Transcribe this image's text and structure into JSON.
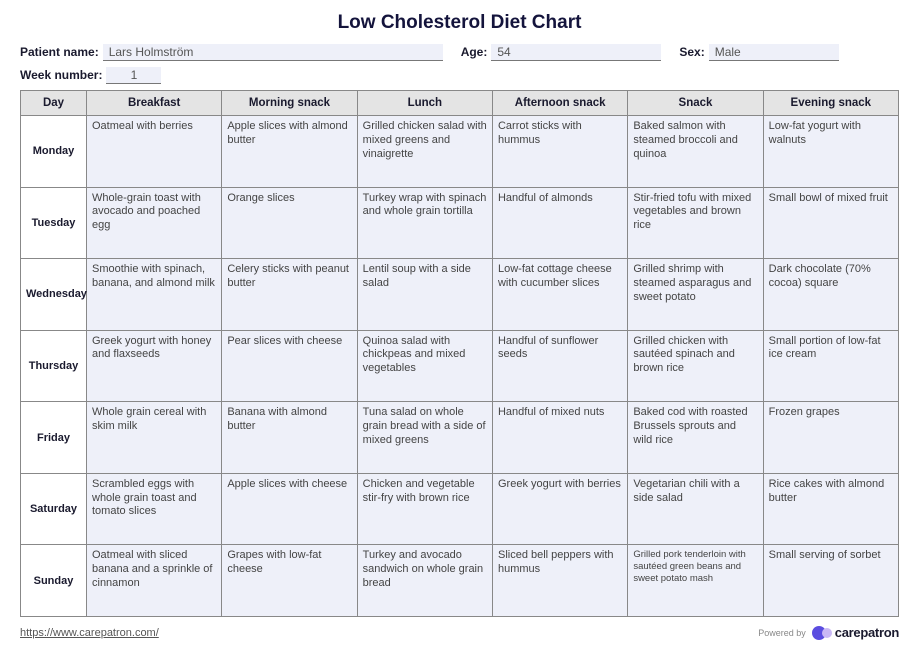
{
  "title": "Low Cholesterol Diet Chart",
  "labels": {
    "patient_name": "Patient name:",
    "age": "Age:",
    "sex": "Sex:",
    "week_number": "Week number:"
  },
  "patient": {
    "name": "Lars Holmström",
    "age": "54",
    "sex": "Male",
    "week": "1"
  },
  "columns": [
    "Day",
    "Breakfast",
    "Morning snack",
    "Lunch",
    "Afternoon snack",
    "Snack",
    "Evening snack"
  ],
  "days": [
    "Monday",
    "Tuesday",
    "Wednesday",
    "Thursday",
    "Friday",
    "Saturday",
    "Sunday"
  ],
  "meals": {
    "Monday": [
      "Oatmeal with berries",
      "Apple slices with almond butter",
      "Grilled chicken salad with mixed greens and vinaigrette",
      "Carrot sticks with hummus",
      "Baked salmon with steamed broccoli and quinoa",
      "Low-fat yogurt with walnuts"
    ],
    "Tuesday": [
      "Whole-grain toast with avocado and poached egg",
      "Orange slices",
      "Turkey wrap with spinach and whole grain tortilla",
      "Handful of almonds",
      "Stir-fried tofu with mixed vegetables and brown rice",
      "Small bowl of mixed fruit"
    ],
    "Wednesday": [
      "Smoothie with spinach, banana, and almond milk",
      "Celery sticks with peanut butter",
      "Lentil soup with a side salad",
      "Low-fat cottage cheese with cucumber slices",
      "Grilled shrimp with steamed asparagus and sweet potato",
      "Dark chocolate (70% cocoa) square"
    ],
    "Thursday": [
      "Greek yogurt with honey and flaxseeds",
      "Pear slices with cheese",
      "Quinoa salad with chickpeas and mixed vegetables",
      "Handful of sunflower seeds",
      "Grilled chicken with sautéed spinach and brown rice",
      "Small portion of low-fat ice cream"
    ],
    "Friday": [
      "Whole grain cereal with skim milk",
      "Banana with almond butter",
      "Tuna salad on whole grain bread with a side of mixed greens",
      "Handful of mixed nuts",
      "Baked cod with roasted Brussels sprouts and wild rice",
      "Frozen grapes"
    ],
    "Saturday": [
      "Scrambled eggs with whole grain toast and tomato slices",
      "Apple slices with cheese",
      "Chicken and vegetable stir-fry with brown rice",
      "Greek yogurt with berries",
      "Vegetarian chili with a side salad",
      "Rice cakes with almond butter"
    ],
    "Sunday": [
      "Oatmeal with sliced banana and a sprinkle of cinnamon",
      "Grapes with low-fat cheese",
      "Turkey and avocado sandwich on whole grain bread",
      "Sliced bell peppers with hummus",
      "Grilled pork tenderloin with sautéed green beans and sweet potato mash",
      "Small serving of sorbet"
    ]
  },
  "footer": {
    "url": "https://www.carepatron.com/",
    "powered_by": "Powered by",
    "brand": "carepatron"
  },
  "style": {
    "title_color": "#14143c",
    "header_bg": "#e4e4e4",
    "cell_bg": "#eef0f9",
    "border_color": "#888888",
    "logo_color1": "#5b4de0",
    "logo_color2": "#c9b8f5"
  }
}
